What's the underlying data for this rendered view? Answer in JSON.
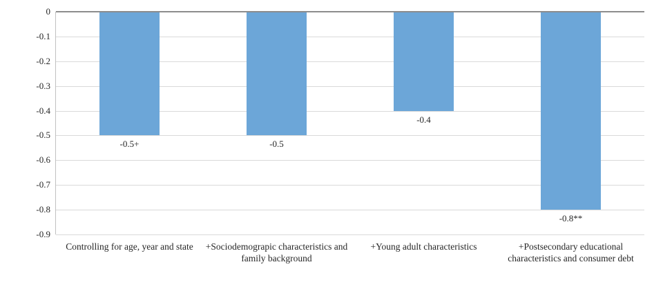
{
  "chart_data": {
    "type": "bar",
    "title": "",
    "xlabel": "",
    "ylabel": "",
    "categories": [
      "Controlling for age, year and state",
      "+Sociodemograpic characteristics and family background",
      "+Young adult characteristics",
      "+Postsecondary educational characteristics and consumer debt"
    ],
    "values": [
      -0.5,
      -0.5,
      -0.4,
      -0.8
    ],
    "data_labels": [
      "-0.5+",
      "-0.5",
      "-0.4",
      "-0.8**"
    ],
    "y_ticks": [
      {
        "label": "0",
        "value": 0
      },
      {
        "label": "-0.1",
        "value": -0.1
      },
      {
        "label": "-0.2",
        "value": -0.2
      },
      {
        "label": "-0.3",
        "value": -0.3
      },
      {
        "label": "-0.4",
        "value": -0.4
      },
      {
        "label": "-0.5",
        "value": -0.5
      },
      {
        "label": "-0.6",
        "value": -0.6
      },
      {
        "label": "-0.7",
        "value": -0.7
      },
      {
        "label": "-0.8",
        "value": -0.8
      },
      {
        "label": "-0.9",
        "value": -0.9
      }
    ],
    "ylim": [
      0,
      -0.9
    ],
    "grid": "horizontal",
    "legend": "none",
    "colors": {
      "bar_fill": "#6ca6d8",
      "gridline": "#d9d9d9",
      "zero_line": "#8c8c8c",
      "y_axis_line": "#c0c0c0",
      "text": "#262626",
      "background": "#ffffff"
    }
  }
}
